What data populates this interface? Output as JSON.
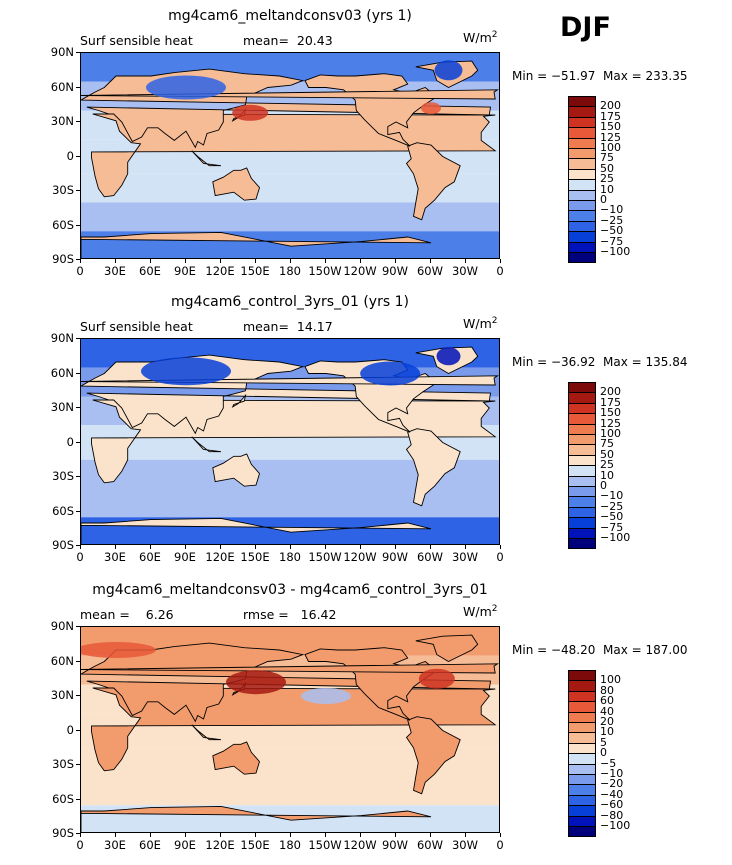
{
  "season": "DJF",
  "colors": {
    "ocean_light": "#cfe2f7",
    "land_outline": "#000000",
    "ramp_abs": [
      "#00007c",
      "#0012b9",
      "#0640d9",
      "#2e63e5",
      "#4d7fe8",
      "#7a9bec",
      "#a9bff2",
      "#d3e3f6",
      "#fbe3cb",
      "#f6bc96",
      "#f29c6e",
      "#ee7c4f",
      "#e8593a",
      "#cf3422",
      "#a41a12",
      "#7c0a0a"
    ],
    "ramp_diff": [
      "#00007c",
      "#0012b9",
      "#0640d9",
      "#2e63e5",
      "#4d7fe8",
      "#7a9bec",
      "#a9bff2",
      "#d3e3f6",
      "#fbe3cb",
      "#f6bc96",
      "#f29c6e",
      "#ee7c4f",
      "#e8593a",
      "#cf3422",
      "#a41a12",
      "#7c0a0a"
    ]
  },
  "axes": {
    "lat_labels": [
      "90N",
      "60N",
      "30N",
      "0",
      "30S",
      "60S",
      "90S"
    ],
    "lon_labels": [
      "0",
      "30E",
      "60E",
      "90E",
      "120E",
      "150E",
      "180",
      "150W",
      "120W",
      "90W",
      "60W",
      "30W",
      "0"
    ]
  },
  "panels": [
    {
      "title": "mg4cam6_meltandconsv03 (yrs 1)",
      "left_label": "Surf sensible heat",
      "center_label": "mean=  20.43",
      "units": "W/m",
      "units_exp": "2",
      "minmax": "Min = −51.97  Max = 233.35",
      "cbar_labels": [
        "200",
        "175",
        "150",
        "125",
        "100",
        "75",
        "50",
        "25",
        "10",
        "0",
        "−10",
        "−25",
        "−50",
        "−75",
        "−100"
      ]
    },
    {
      "title": "mg4cam6_control_3yrs_01 (yrs 1)",
      "left_label": "Surf sensible heat",
      "center_label": "mean=  14.17",
      "units": "W/m",
      "units_exp": "2",
      "minmax": "Min = −36.92  Max = 135.84",
      "cbar_labels": [
        "200",
        "175",
        "150",
        "125",
        "100",
        "75",
        "50",
        "25",
        "10",
        "0",
        "−10",
        "−25",
        "−50",
        "−75",
        "−100"
      ]
    },
    {
      "title": "mg4cam6_meltandconsv03 - mg4cam6_control_3yrs_01",
      "left_label": "mean =    6.26",
      "center_label": "rmse =   16.42",
      "units": "W/m",
      "units_exp": "2",
      "minmax": "Min = −48.20  Max = 187.00",
      "cbar_labels": [
        "100",
        "80",
        "60",
        "40",
        "20",
        "10",
        "5",
        "0",
        "−5",
        "−10",
        "−20",
        "−40",
        "−60",
        "−80",
        "−100"
      ]
    }
  ],
  "chart_data": [
    {
      "type": "heatmap",
      "title": "mg4cam6_meltandconsv03 (yrs 1)",
      "variable": "Surf sensible heat",
      "units": "W/m2",
      "mean": 20.43,
      "min": -51.97,
      "max": 233.35,
      "levels": [
        -100,
        -75,
        -50,
        -25,
        -10,
        0,
        10,
        25,
        50,
        75,
        100,
        125,
        150,
        175,
        200
      ]
    },
    {
      "type": "heatmap",
      "title": "mg4cam6_control_3yrs_01 (yrs 1)",
      "variable": "Surf sensible heat",
      "units": "W/m2",
      "mean": 14.17,
      "min": -36.92,
      "max": 135.84,
      "levels": [
        -100,
        -75,
        -50,
        -25,
        -10,
        0,
        10,
        25,
        50,
        75,
        100,
        125,
        150,
        175,
        200
      ]
    },
    {
      "type": "heatmap",
      "title": "mg4cam6_meltandconsv03 - mg4cam6_control_3yrs_01",
      "units": "W/m2",
      "mean": 6.26,
      "rmse": 16.42,
      "min": -48.2,
      "max": 187.0,
      "levels": [
        -100,
        -80,
        -60,
        -40,
        -20,
        -10,
        -5,
        0,
        5,
        10,
        20,
        40,
        60,
        80,
        100
      ]
    }
  ]
}
